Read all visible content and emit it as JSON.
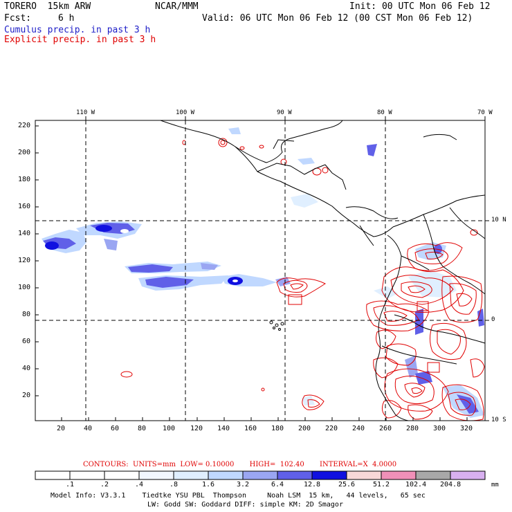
{
  "header": {
    "model": "TORERO  15km ARW",
    "org": "NCAR/MMM",
    "init": "Init: 00 UTC Mon 06 Feb 12",
    "fcst_label": "Fcst:",
    "fcst_value": "6 h",
    "valid": "Valid: 06 UTC Mon 06 Feb 12 (00 CST Mon 06 Feb 12)",
    "line_cumulus": "Cumulus precip. in past 3 h",
    "line_explicit": "Explicit precip. in past 3 h"
  },
  "colors": {
    "cumulus": "#2020c8",
    "explicit": "#e00000",
    "coast": "#000000"
  },
  "map": {
    "top_lon_labels": [
      "110 W",
      "100 W",
      "90 W",
      "80 W",
      "70 W"
    ],
    "right_lat_labels": [
      "10 N",
      "0",
      "10 S"
    ],
    "y_ticks": [
      "220",
      "200",
      "180",
      "160",
      "140",
      "120",
      "100",
      "80",
      "60",
      "40",
      "20"
    ],
    "x_ticks": [
      "20",
      "40",
      "60",
      "80",
      "100",
      "120",
      "140",
      "160",
      "180",
      "200",
      "220",
      "240",
      "260",
      "280",
      "300",
      "320"
    ]
  },
  "footer": {
    "contours_text": "CONTOURS:  UNITS=mm  LOW= 0.10000       HIGH=  102.40       INTERVAL=X  4.0000",
    "colorbar_labels": [
      ".1",
      ".2",
      ".4",
      ".8",
      "1.6",
      "3.2",
      "6.4",
      "12.8",
      "25.6",
      "51.2",
      "102.4",
      "204.8"
    ],
    "colorbar_unit": "mm",
    "colorbar_colors": [
      "#ffffff",
      "#ffffff",
      "#f2f7ff",
      "#e0efff",
      "#c0d8ff",
      "#9aa6f2",
      "#6060e8",
      "#1010e0",
      "#f8d8d8",
      "#f090b8",
      "#a8a8a8",
      "#d8b0f0"
    ],
    "model_info_1": "Model Info: V3.3.1    Tiedtke YSU PBL  Thompson     Noah LSM  15 km,   44 levels,   65 sec",
    "model_info_2": "LW: Godd SW: Goddard DIFF: simple KM: 2D Smagor"
  }
}
